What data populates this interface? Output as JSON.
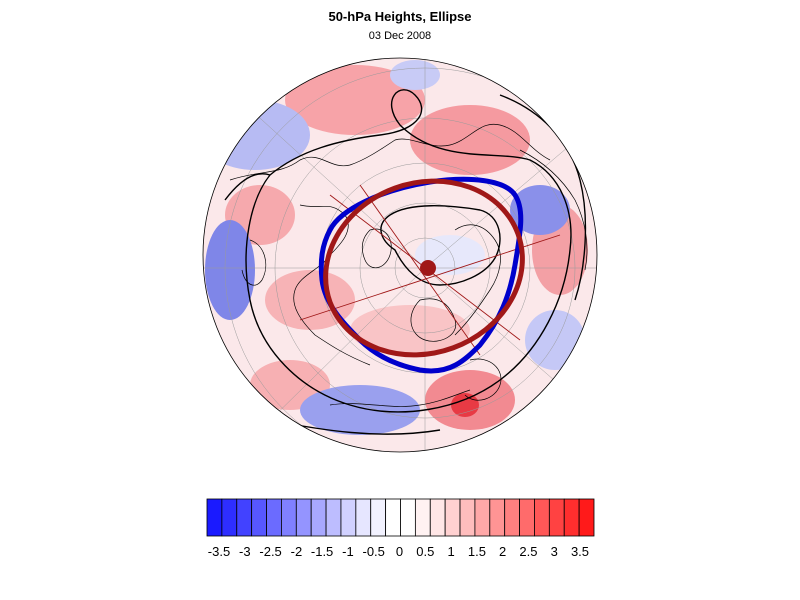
{
  "header": {
    "title": "50-hPa Heights, Ellipse",
    "date": "03 Dec 2008"
  },
  "map": {
    "projection": "polar stereographic (north pole)",
    "vortex_edge_color": "#0000cc",
    "fitted_ellipse_color": "#a01818",
    "centroid_color": "#a01818",
    "contour_color": "#000000"
  },
  "colorbar": {
    "labels": [
      "-3.5",
      "-3",
      "-2.5",
      "-2",
      "-1.5",
      "-1",
      "-0.5",
      "0",
      "0.5",
      "1",
      "1.5",
      "2",
      "2.5",
      "3",
      "3.5"
    ],
    "colors": [
      "#1a1aff",
      "#2e2eff",
      "#4242ff",
      "#5757ff",
      "#6b6bff",
      "#8080ff",
      "#9494ff",
      "#a8a8ff",
      "#bdbdff",
      "#d1d1ff",
      "#e6e6ff",
      "#f2f2ff",
      "#ffffff",
      "#ffffff",
      "#fff2f2",
      "#ffe6e6",
      "#ffd1d1",
      "#ffbdbd",
      "#ffa8a8",
      "#ff9494",
      "#ff8080",
      "#ff6b6b",
      "#ff5757",
      "#ff4242",
      "#ff2e2e",
      "#ff1a1a"
    ]
  }
}
